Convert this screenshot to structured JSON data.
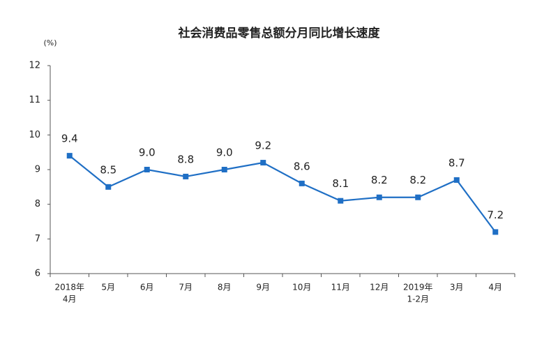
{
  "chart_data": {
    "type": "line",
    "title": "社会消费品零售总额分月同比增长速度",
    "y_label": "(%)",
    "categories": [
      [
        "2018年",
        "4月"
      ],
      [
        "5月"
      ],
      [
        "6月"
      ],
      [
        "7月"
      ],
      [
        "8月"
      ],
      [
        "9月"
      ],
      [
        "10月"
      ],
      [
        "11月"
      ],
      [
        "12月"
      ],
      [
        "2019年",
        "1-2月"
      ],
      [
        "3月"
      ],
      [
        "4月"
      ]
    ],
    "values": [
      9.4,
      8.5,
      9.0,
      8.8,
      9.0,
      9.2,
      8.6,
      8.1,
      8.2,
      8.2,
      8.7,
      7.2
    ],
    "value_labels": [
      "9.4",
      "8.5",
      "9.0",
      "8.8",
      "9.0",
      "9.2",
      "8.6",
      "8.1",
      "8.2",
      "8.2",
      "8.7",
      "7.2"
    ],
    "color": "#1f6fc5",
    "ylim": [
      6,
      12
    ],
    "yticks": [
      6,
      7,
      8,
      9,
      10,
      11,
      12
    ],
    "grid": false
  }
}
